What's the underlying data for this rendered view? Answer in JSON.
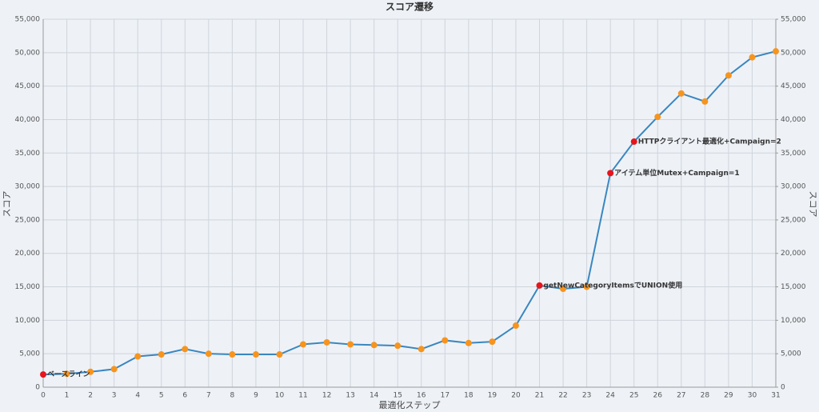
{
  "chart_data": {
    "type": "line",
    "title": "スコア遷移",
    "x_label": "最適化ステップ",
    "y_label": "スコア",
    "y2_label": "スコア",
    "x": [
      0,
      1,
      2,
      3,
      4,
      5,
      6,
      7,
      8,
      9,
      10,
      11,
      12,
      13,
      14,
      15,
      16,
      17,
      18,
      19,
      20,
      21,
      22,
      23,
      24,
      25,
      26,
      27,
      28,
      29,
      30,
      31
    ],
    "series": [
      {
        "name": "スコア",
        "color": "#3a87c0",
        "marker_color": "#f7941d",
        "values": [
          1900,
          2000,
          2300,
          2700,
          4600,
          4900,
          5700,
          5000,
          4900,
          4900,
          4900,
          6400,
          6700,
          6400,
          6300,
          6200,
          5700,
          7000,
          6600,
          6800,
          9200,
          15200,
          14700,
          15000,
          32000,
          36700,
          40400,
          43900,
          42700,
          46600,
          49300,
          50200
        ]
      }
    ],
    "annotations": [
      {
        "x": 0,
        "text": "ベースライン"
      },
      {
        "x": 21,
        "text": "getNewCategoryItemsでUNION使用"
      },
      {
        "x": 24,
        "text": "アイテム単位Mutex+Campaign=1"
      },
      {
        "x": 25,
        "text": "HTTPクライアント最適化+Campaign=2"
      }
    ],
    "annotation_color": "#e8141c",
    "xlim": [
      0,
      31
    ],
    "xticks": [
      0,
      1,
      2,
      3,
      4,
      5,
      6,
      7,
      8,
      9,
      10,
      11,
      12,
      13,
      14,
      15,
      16,
      17,
      18,
      19,
      20,
      21,
      22,
      23,
      24,
      25,
      26,
      27,
      28,
      29,
      30,
      31
    ],
    "ylim": [
      0,
      55000
    ],
    "yticks": [
      0,
      {
        "value": 5000,
        "label": "5,000"
      },
      {
        "value": 10000,
        "label": "10,000"
      },
      {
        "value": 15000,
        "label": "15,000"
      },
      {
        "value": 20000,
        "label": "20,000"
      },
      {
        "value": 25000,
        "label": "25,000"
      },
      {
        "value": 30000,
        "label": "30,000"
      },
      {
        "value": 35000,
        "label": "35,000"
      },
      {
        "value": 40000,
        "label": "40,000"
      },
      {
        "value": 45000,
        "label": "45,000"
      },
      {
        "value": 50000,
        "label": "50,000"
      },
      {
        "value": 55000,
        "label": "55,000"
      }
    ],
    "y2lim": [
      0,
      55000
    ],
    "y2ticks": [
      0,
      {
        "value": 5000,
        "label": "5,000"
      },
      {
        "value": 10000,
        "label": "10,000"
      },
      {
        "value": 15000,
        "label": "15,000"
      },
      {
        "value": 20000,
        "label": "20,000"
      },
      {
        "value": 25000,
        "label": "25,000"
      },
      {
        "value": 30000,
        "label": "30,000"
      },
      {
        "value": 35000,
        "label": "35,000"
      },
      {
        "value": 40000,
        "label": "40,000"
      },
      {
        "value": 45000,
        "label": "45,000"
      },
      {
        "value": 50000,
        "label": "50,000"
      },
      {
        "value": 55000,
        "label": "55,000"
      }
    ],
    "grid": true
  }
}
